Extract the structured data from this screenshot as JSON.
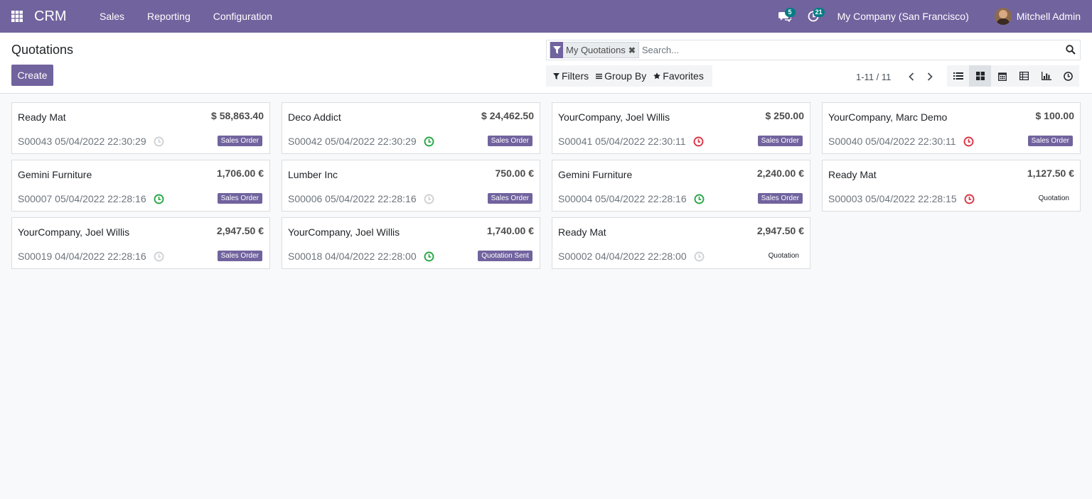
{
  "nav": {
    "app_name": "CRM",
    "menu": [
      "Sales",
      "Reporting",
      "Configuration"
    ],
    "messages_count": "5",
    "activities_count": "21",
    "company": "My Company (San Francisco)",
    "user": "Mitchell Admin"
  },
  "control": {
    "title": "Quotations",
    "create_label": "Create",
    "facet_label": "My Quotations",
    "search_placeholder": "Search...",
    "filters_label": "Filters",
    "groupby_label": "Group By",
    "favorites_label": "Favorites",
    "pager": "1-11 / 11"
  },
  "colors": {
    "brand": "#71639e",
    "activity_ok": "#28a745",
    "activity_overdue": "#dc3545",
    "activity_none": "#cfd2d5"
  },
  "cards": [
    {
      "customer": "Ready Mat",
      "amount": "$ 58,863.40",
      "ref": "S00043 05/04/2022 22:30:29",
      "activity": "none",
      "state": "Sales Order",
      "state_kind": "so"
    },
    {
      "customer": "Deco Addict",
      "amount": "$ 24,462.50",
      "ref": "S00042 05/04/2022 22:30:29",
      "activity": "ok",
      "state": "Sales Order",
      "state_kind": "so"
    },
    {
      "customer": "YourCompany, Joel Willis",
      "amount": "$ 250.00",
      "ref": "S00041 05/04/2022 22:30:11",
      "activity": "overdue",
      "state": "Sales Order",
      "state_kind": "so"
    },
    {
      "customer": "YourCompany, Marc Demo",
      "amount": "$ 100.00",
      "ref": "S00040 05/04/2022 22:30:11",
      "activity": "overdue",
      "state": "Sales Order",
      "state_kind": "so"
    },
    {
      "customer": "Gemini Furniture",
      "amount": "1,706.00 €",
      "ref": "S00007 05/04/2022 22:28:16",
      "activity": "ok",
      "state": "Sales Order",
      "state_kind": "so"
    },
    {
      "customer": "Lumber Inc",
      "amount": "750.00 €",
      "ref": "S00006 05/04/2022 22:28:16",
      "activity": "none",
      "state": "Sales Order",
      "state_kind": "so"
    },
    {
      "customer": "Gemini Furniture",
      "amount": "2,240.00 €",
      "ref": "S00004 05/04/2022 22:28:16",
      "activity": "ok",
      "state": "Sales Order",
      "state_kind": "so"
    },
    {
      "customer": "Ready Mat",
      "amount": "1,127.50 €",
      "ref": "S00003 05/04/2022 22:28:15",
      "activity": "overdue",
      "state": "Quotation",
      "state_kind": "qt"
    },
    {
      "customer": "YourCompany, Joel Willis",
      "amount": "2,947.50 €",
      "ref": "S00019 04/04/2022 22:28:16",
      "activity": "none",
      "state": "Sales Order",
      "state_kind": "so"
    },
    {
      "customer": "YourCompany, Joel Willis",
      "amount": "1,740.00 €",
      "ref": "S00018 04/04/2022 22:28:00",
      "activity": "ok",
      "state": "Quotation Sent",
      "state_kind": "sent"
    },
    {
      "customer": "Ready Mat",
      "amount": "2,947.50 €",
      "ref": "S00002 04/04/2022 22:28:00",
      "activity": "none",
      "state": "Quotation",
      "state_kind": "qt"
    }
  ]
}
